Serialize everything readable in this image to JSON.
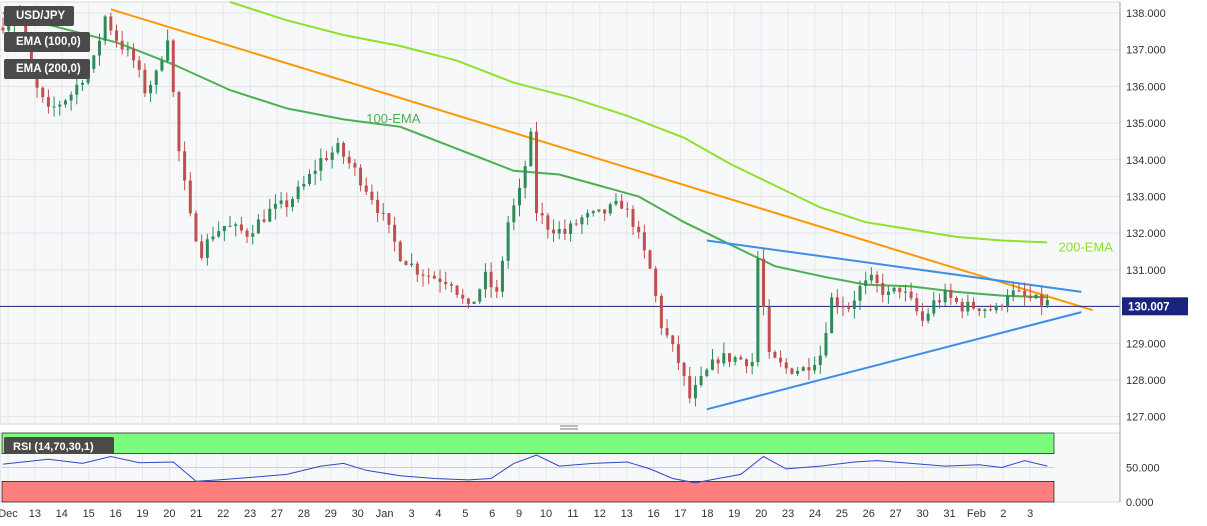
{
  "symbol": "USD/JPY",
  "indicators": [
    "EMA (100,0)",
    "EMA (200,0)"
  ],
  "rsi_label": "RSI (14,70,30,1)",
  "colors": {
    "bull": "#2e8b57",
    "bear": "#c0504d",
    "ema100": "#4caf50",
    "ema200": "#8ee22c",
    "resistance": "#ff9800",
    "triangle": "#3d8ee6",
    "rsi_line": "#3346c8",
    "rsi_over": "#7cfc7c",
    "rsi_under": "#ff7f7f",
    "price_line": "#1a237e",
    "price_tag": "#1a237e"
  },
  "chart_data": {
    "type": "candlestick",
    "price_axis": {
      "ylim": [
        126.8,
        138.3
      ],
      "ticks": [
        "138.000",
        "137.000",
        "136.000",
        "135.000",
        "134.000",
        "133.000",
        "132.000",
        "131.000",
        "130.000",
        "129.000",
        "128.000",
        "127.000"
      ]
    },
    "current_price": "130.007",
    "x_labels": [
      "Dec",
      "13",
      "14",
      "15",
      "16",
      "19",
      "20",
      "21",
      "22",
      "23",
      "27",
      "28",
      "29",
      "30",
      "Jan",
      "3",
      "4",
      "5",
      "6",
      "9",
      "10",
      "11",
      "12",
      "13",
      "16",
      "17",
      "18",
      "19",
      "20",
      "23",
      "24",
      "25",
      "26",
      "27",
      "30",
      "31",
      "Feb",
      "2",
      "3"
    ],
    "anchors": [
      [
        0,
        137.6
      ],
      [
        4,
        138.0
      ],
      [
        6,
        136.2
      ],
      [
        9,
        135.3
      ],
      [
        13,
        135.8
      ],
      [
        17,
        136.7
      ],
      [
        19,
        137.9
      ],
      [
        21,
        137.3
      ],
      [
        24,
        136.7
      ],
      [
        26,
        135.9
      ],
      [
        28,
        136.3
      ],
      [
        30,
        137.4
      ],
      [
        32,
        134.2
      ],
      [
        34,
        132.4
      ],
      [
        36,
        131.5
      ],
      [
        38,
        132.0
      ],
      [
        40,
        132.2
      ],
      [
        44,
        132.0
      ],
      [
        48,
        132.6
      ],
      [
        51,
        132.8
      ],
      [
        54,
        133.3
      ],
      [
        57,
        134.0
      ],
      [
        60,
        134.3
      ],
      [
        63,
        133.7
      ],
      [
        66,
        133.0
      ],
      [
        68,
        132.4
      ],
      [
        71,
        131.4
      ],
      [
        74,
        131.0
      ],
      [
        77,
        130.8
      ],
      [
        80,
        130.7
      ],
      [
        83,
        129.9
      ],
      [
        86,
        130.8
      ],
      [
        88,
        130.3
      ],
      [
        90,
        132.3
      ],
      [
        92,
        133.1
      ],
      [
        94,
        134.6
      ],
      [
        95,
        132.6
      ],
      [
        97,
        132.2
      ],
      [
        100,
        132.0
      ],
      [
        103,
        132.4
      ],
      [
        106,
        132.5
      ],
      [
        110,
        132.8
      ],
      [
        112,
        132.3
      ],
      [
        115,
        131.0
      ],
      [
        117,
        129.5
      ],
      [
        120,
        128.5
      ],
      [
        122,
        127.5
      ],
      [
        125,
        128.2
      ],
      [
        127,
        128.6
      ],
      [
        130,
        128.6
      ],
      [
        133,
        128.5
      ],
      [
        134,
        131.3
      ],
      [
        136,
        128.6
      ],
      [
        139,
        128.3
      ],
      [
        142,
        128.3
      ],
      [
        145,
        128.7
      ],
      [
        147,
        130.2
      ],
      [
        150,
        130.0
      ],
      [
        152,
        130.5
      ],
      [
        154,
        130.7
      ],
      [
        157,
        130.3
      ],
      [
        159,
        130.5
      ],
      [
        161,
        130.1
      ],
      [
        163,
        129.6
      ],
      [
        165,
        130.1
      ],
      [
        167,
        130.3
      ],
      [
        170,
        130.0
      ],
      [
        173,
        130.0
      ],
      [
        176,
        129.9
      ],
      [
        178,
        130.4
      ],
      [
        180,
        130.3
      ],
      [
        182,
        130.2
      ],
      [
        184,
        130.1
      ]
    ],
    "ema100": [
      [
        0,
        138.0
      ],
      [
        10,
        137.6
      ],
      [
        20,
        137.2
      ],
      [
        30,
        136.6
      ],
      [
        40,
        135.9
      ],
      [
        50,
        135.4
      ],
      [
        60,
        135.1
      ],
      [
        70,
        134.9
      ],
      [
        80,
        134.3
      ],
      [
        90,
        133.7
      ],
      [
        98,
        133.6
      ],
      [
        105,
        133.3
      ],
      [
        112,
        133.0
      ],
      [
        120,
        132.3
      ],
      [
        128,
        131.7
      ],
      [
        136,
        131.1
      ],
      [
        145,
        130.8
      ],
      [
        152,
        130.6
      ],
      [
        160,
        130.55
      ],
      [
        168,
        130.4
      ],
      [
        176,
        130.3
      ],
      [
        184,
        130.25
      ]
    ],
    "ema200": [
      [
        40,
        138.3
      ],
      [
        50,
        137.8
      ],
      [
        60,
        137.4
      ],
      [
        70,
        137.1
      ],
      [
        80,
        136.7
      ],
      [
        90,
        136.1
      ],
      [
        100,
        135.7
      ],
      [
        110,
        135.2
      ],
      [
        120,
        134.6
      ],
      [
        128,
        133.9
      ],
      [
        136,
        133.3
      ],
      [
        144,
        132.7
      ],
      [
        152,
        132.3
      ],
      [
        160,
        132.1
      ],
      [
        168,
        131.9
      ],
      [
        176,
        131.8
      ],
      [
        184,
        131.75
      ]
    ],
    "resistance_line": [
      [
        19,
        138.1
      ],
      [
        192,
        129.9
      ]
    ],
    "triangle_upper": [
      [
        124,
        131.8
      ],
      [
        190,
        130.4
      ]
    ],
    "triangle_lower": [
      [
        124,
        127.2
      ],
      [
        190,
        129.85
      ]
    ],
    "annotations": [
      {
        "text": "100-EMA",
        "x": 64,
        "y": 135.0,
        "series": "ema100"
      },
      {
        "text": "200-EMA",
        "x": 186,
        "y": 131.5,
        "series": "ema200"
      }
    ],
    "rsi": {
      "ylim": [
        0,
        100
      ],
      "ticks": [
        "50.000",
        "0.000"
      ],
      "overbought": 70,
      "oversold": 30,
      "anchors": [
        [
          0,
          55
        ],
        [
          8,
          62
        ],
        [
          14,
          56
        ],
        [
          19,
          66
        ],
        [
          24,
          57
        ],
        [
          30,
          58
        ],
        [
          34,
          30
        ],
        [
          38,
          32
        ],
        [
          44,
          36
        ],
        [
          50,
          40
        ],
        [
          56,
          52
        ],
        [
          60,
          56
        ],
        [
          64,
          46
        ],
        [
          70,
          38
        ],
        [
          76,
          34
        ],
        [
          82,
          32
        ],
        [
          86,
          34
        ],
        [
          90,
          56
        ],
        [
          94,
          68
        ],
        [
          98,
          52
        ],
        [
          104,
          56
        ],
        [
          110,
          58
        ],
        [
          114,
          48
        ],
        [
          118,
          34
        ],
        [
          122,
          28
        ],
        [
          126,
          34
        ],
        [
          130,
          40
        ],
        [
          134,
          66
        ],
        [
          138,
          48
        ],
        [
          144,
          52
        ],
        [
          150,
          58
        ],
        [
          154,
          60
        ],
        [
          160,
          56
        ],
        [
          166,
          52
        ],
        [
          172,
          54
        ],
        [
          176,
          50
        ],
        [
          180,
          60
        ],
        [
          184,
          52
        ]
      ]
    }
  }
}
